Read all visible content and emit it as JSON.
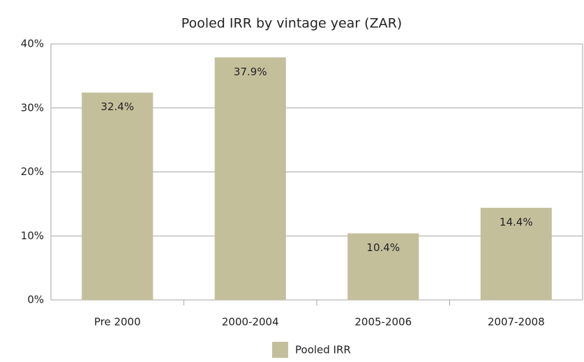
{
  "chart_data": {
    "type": "bar",
    "title": "Pooled IRR by vintage year (ZAR)",
    "categories": [
      "Pre 2000",
      "2000-2004",
      "2005-2006",
      "2007-2008"
    ],
    "series": [
      {
        "name": "Pooled IRR",
        "color": "#c4bf9b",
        "values": [
          32.4,
          37.9,
          10.4,
          14.4
        ],
        "value_labels": [
          "32.4%",
          "37.9%",
          "10.4%",
          "14.4%"
        ]
      }
    ],
    "ylim": [
      0,
      40
    ],
    "yticks": [
      {
        "value": 0,
        "label": "0%"
      },
      {
        "value": 10,
        "label": "10%"
      },
      {
        "value": 20,
        "label": "20%"
      },
      {
        "value": 30,
        "label": "30%"
      },
      {
        "value": 40,
        "label": "40%"
      }
    ],
    "grid": true,
    "legend": "bottom"
  }
}
